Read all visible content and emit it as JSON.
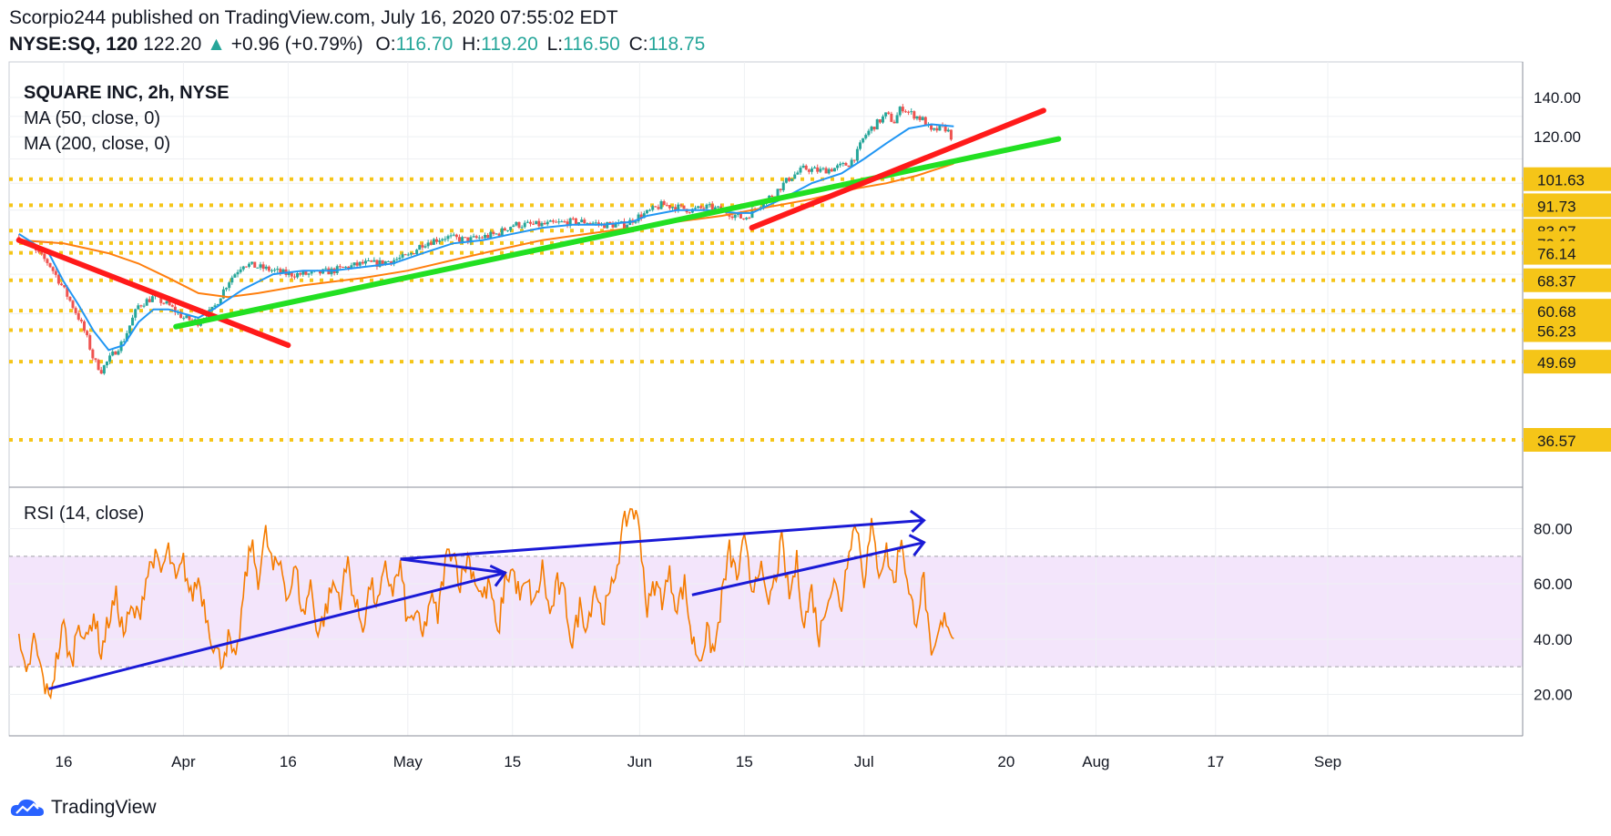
{
  "header": {
    "publisher": "Scorpio244 published on TradingView.com, July 16, 2020 07:55:02 EDT",
    "symbol": "NYSE:SQ, 120",
    "last": "122.20",
    "change": "+0.96 (+0.79%)",
    "o_label": "O:",
    "o": "116.70",
    "h_label": "H:",
    "h": "119.20",
    "l_label": "L:",
    "l": "116.50",
    "c_label": "C:",
    "c": "118.75"
  },
  "legend": {
    "title": "SQUARE INC, 2h, NYSE",
    "ma50": "MA (50, close, 0)",
    "ma200": "MA (200, close, 0)",
    "rsi": "RSI (14, close)"
  },
  "footer": {
    "brand": "TradingView"
  },
  "colors": {
    "up": "#26a69a",
    "down": "#ef5350",
    "ma50": "#2196f3",
    "ma200": "#ff7f0e",
    "rsi": "#f57c00",
    "level": "#f5c518",
    "trend_red": "#ff1a1a",
    "trend_green": "#22e022",
    "trend_blue": "#1a1ad6",
    "rsi_band": "#f3e5fb"
  },
  "chart_data": [
    {
      "type": "candlestick",
      "title": "SQUARE INC, 2h, NYSE",
      "x_ticks": [
        "16",
        "Apr",
        "16",
        "May",
        "15",
        "Jun",
        "15",
        "Jul",
        "20",
        "Aug",
        "17",
        "Sep"
      ],
      "x_tick_days": [
        0,
        16,
        30,
        46,
        60,
        77,
        91,
        107,
        126,
        138,
        154,
        169
      ],
      "y_scale": "log",
      "y_ticks": [
        140,
        120
      ],
      "horizontal_levels": [
        101.63,
        91.73,
        83.07,
        79.12,
        76.14,
        68.37,
        60.68,
        56.23,
        49.69,
        36.57
      ],
      "anchors": [
        [
          -6,
          81
        ],
        [
          -2,
          73
        ],
        [
          0,
          66
        ],
        [
          2,
          59
        ],
        [
          3,
          55
        ],
        [
          4,
          50
        ],
        [
          5,
          48
        ],
        [
          6,
          50
        ],
        [
          7,
          52
        ],
        [
          8,
          54
        ],
        [
          10,
          62
        ],
        [
          12,
          64
        ],
        [
          14,
          62
        ],
        [
          16,
          59
        ],
        [
          18,
          58
        ],
        [
          20,
          61
        ],
        [
          22,
          68
        ],
        [
          24,
          73
        ],
        [
          26,
          72
        ],
        [
          28,
          71
        ],
        [
          30,
          70
        ],
        [
          33,
          70
        ],
        [
          36,
          71
        ],
        [
          38,
          72
        ],
        [
          40,
          73
        ],
        [
          42,
          73
        ],
        [
          44,
          74
        ],
        [
          46,
          75
        ],
        [
          48,
          79
        ],
        [
          51,
          81
        ],
        [
          54,
          80
        ],
        [
          56,
          81
        ],
        [
          58,
          82
        ],
        [
          60,
          85
        ],
        [
          64,
          85
        ],
        [
          68,
          86
        ],
        [
          70,
          86
        ],
        [
          72,
          85
        ],
        [
          75,
          85
        ],
        [
          77,
          88
        ],
        [
          78,
          89
        ],
        [
          80,
          92
        ],
        [
          82,
          91
        ],
        [
          84,
          90
        ],
        [
          86,
          91
        ],
        [
          88,
          90
        ],
        [
          90,
          88
        ],
        [
          91,
          87
        ],
        [
          93,
          92
        ],
        [
          95,
          96
        ],
        [
          97,
          102
        ],
        [
          99,
          106
        ],
        [
          101,
          105
        ],
        [
          103,
          106
        ],
        [
          105,
          108
        ],
        [
          106,
          112
        ],
        [
          107,
          120
        ],
        [
          108,
          124
        ],
        [
          110,
          131
        ],
        [
          111,
          127
        ],
        [
          112,
          135
        ],
        [
          113,
          132
        ],
        [
          114,
          130
        ],
        [
          115,
          128
        ],
        [
          116,
          122
        ],
        [
          117,
          124
        ],
        [
          118,
          124
        ],
        [
          119,
          118
        ]
      ],
      "ma50": [
        [
          -6,
          82
        ],
        [
          -2,
          76
        ],
        [
          0,
          68
        ],
        [
          2,
          62
        ],
        [
          4,
          56
        ],
        [
          6,
          52
        ],
        [
          8,
          53
        ],
        [
          10,
          58
        ],
        [
          12,
          61
        ],
        [
          14,
          61
        ],
        [
          16,
          60
        ],
        [
          18,
          59
        ],
        [
          20,
          61
        ],
        [
          24,
          66
        ],
        [
          28,
          70
        ],
        [
          32,
          71
        ],
        [
          36,
          71
        ],
        [
          40,
          72
        ],
        [
          44,
          73
        ],
        [
          48,
          76
        ],
        [
          52,
          79
        ],
        [
          56,
          80
        ],
        [
          60,
          82
        ],
        [
          64,
          84
        ],
        [
          68,
          85
        ],
        [
          72,
          85
        ],
        [
          76,
          86
        ],
        [
          78,
          88
        ],
        [
          82,
          90
        ],
        [
          86,
          90
        ],
        [
          90,
          89
        ],
        [
          92,
          89
        ],
        [
          96,
          94
        ],
        [
          100,
          100
        ],
        [
          104,
          104
        ],
        [
          107,
          110
        ],
        [
          110,
          117
        ],
        [
          113,
          124
        ],
        [
          116,
          126
        ],
        [
          119,
          125
        ]
      ],
      "ma200": [
        [
          -6,
          80
        ],
        [
          0,
          79
        ],
        [
          6,
          76
        ],
        [
          10,
          73
        ],
        [
          14,
          69
        ],
        [
          18,
          65
        ],
        [
          22,
          64
        ],
        [
          26,
          65
        ],
        [
          32,
          67
        ],
        [
          40,
          69
        ],
        [
          46,
          71
        ],
        [
          52,
          74
        ],
        [
          58,
          77
        ],
        [
          64,
          80
        ],
        [
          70,
          82
        ],
        [
          76,
          84
        ],
        [
          82,
          86
        ],
        [
          88,
          88
        ],
        [
          94,
          91
        ],
        [
          100,
          94
        ],
        [
          106,
          98
        ],
        [
          110,
          100
        ],
        [
          114,
          103
        ],
        [
          119,
          108
        ]
      ],
      "trendlines": [
        {
          "color": "red",
          "from": [
            -6,
            80
          ],
          "to": [
            30,
            53
          ]
        },
        {
          "color": "green",
          "from": [
            15,
            57
          ],
          "to": [
            133,
            119
          ]
        },
        {
          "color": "red",
          "from": [
            92,
            84
          ],
          "to": [
            131,
            133
          ]
        }
      ]
    },
    {
      "type": "line",
      "title": "RSI (14, close)",
      "y_ticks": [
        80,
        60,
        40,
        20
      ],
      "band": [
        30,
        70
      ],
      "anchors": [
        [
          -6,
          38
        ],
        [
          -5,
          25
        ],
        [
          -4,
          40
        ],
        [
          -3,
          28
        ],
        [
          -2,
          18
        ],
        [
          -1,
          32
        ],
        [
          0,
          45
        ],
        [
          1,
          30
        ],
        [
          2,
          48
        ],
        [
          3,
          38
        ],
        [
          4,
          50
        ],
        [
          5,
          35
        ],
        [
          6,
          47
        ],
        [
          7,
          55
        ],
        [
          8,
          42
        ],
        [
          9,
          50
        ],
        [
          10,
          48
        ],
        [
          11,
          62
        ],
        [
          12,
          70
        ],
        [
          13,
          64
        ],
        [
          14,
          72
        ],
        [
          15,
          60
        ],
        [
          16,
          68
        ],
        [
          17,
          55
        ],
        [
          18,
          62
        ],
        [
          19,
          50
        ],
        [
          20,
          38
        ],
        [
          21,
          32
        ],
        [
          22,
          40
        ],
        [
          23,
          30
        ],
        [
          24,
          55
        ],
        [
          25,
          75
        ],
        [
          26,
          62
        ],
        [
          27,
          78
        ],
        [
          28,
          65
        ],
        [
          29,
          68
        ],
        [
          30,
          55
        ],
        [
          31,
          66
        ],
        [
          32,
          48
        ],
        [
          33,
          60
        ],
        [
          34,
          42
        ],
        [
          35,
          50
        ],
        [
          36,
          60
        ],
        [
          37,
          55
        ],
        [
          38,
          68
        ],
        [
          39,
          52
        ],
        [
          40,
          45
        ],
        [
          41,
          60
        ],
        [
          42,
          52
        ],
        [
          43,
          65
        ],
        [
          44,
          58
        ],
        [
          45,
          66
        ],
        [
          46,
          45
        ],
        [
          47,
          50
        ],
        [
          48,
          40
        ],
        [
          49,
          55
        ],
        [
          50,
          48
        ],
        [
          51,
          68
        ],
        [
          52,
          74
        ],
        [
          53,
          60
        ],
        [
          54,
          70
        ],
        [
          55,
          62
        ],
        [
          56,
          55
        ],
        [
          57,
          60
        ],
        [
          58,
          40
        ],
        [
          59,
          62
        ],
        [
          60,
          65
        ],
        [
          61,
          55
        ],
        [
          62,
          60
        ],
        [
          63,
          52
        ],
        [
          64,
          66
        ],
        [
          65,
          48
        ],
        [
          66,
          60
        ],
        [
          67,
          55
        ],
        [
          68,
          38
        ],
        [
          69,
          52
        ],
        [
          70,
          45
        ],
        [
          71,
          60
        ],
        [
          72,
          48
        ],
        [
          73,
          55
        ],
        [
          74,
          68
        ],
        [
          75,
          82
        ],
        [
          76,
          88
        ],
        [
          77,
          80
        ],
        [
          78,
          50
        ],
        [
          79,
          60
        ],
        [
          80,
          55
        ],
        [
          81,
          63
        ],
        [
          82,
          52
        ],
        [
          83,
          60
        ],
        [
          84,
          40
        ],
        [
          85,
          33
        ],
        [
          86,
          42
        ],
        [
          87,
          35
        ],
        [
          88,
          55
        ],
        [
          89,
          72
        ],
        [
          90,
          62
        ],
        [
          91,
          75
        ],
        [
          92,
          58
        ],
        [
          93,
          68
        ],
        [
          94,
          52
        ],
        [
          95,
          60
        ],
        [
          96,
          75
        ],
        [
          97,
          55
        ],
        [
          98,
          68
        ],
        [
          99,
          45
        ],
        [
          100,
          58
        ],
        [
          101,
          40
        ],
        [
          102,
          55
        ],
        [
          103,
          60
        ],
        [
          104,
          52
        ],
        [
          105,
          75
        ],
        [
          106,
          82
        ],
        [
          107,
          62
        ],
        [
          108,
          80
        ],
        [
          109,
          65
        ],
        [
          110,
          72
        ],
        [
          111,
          60
        ],
        [
          112,
          78
        ],
        [
          113,
          55
        ],
        [
          114,
          48
        ],
        [
          115,
          62
        ],
        [
          116,
          30
        ],
        [
          117,
          42
        ],
        [
          118,
          48
        ],
        [
          119,
          40
        ]
      ],
      "trendlines": [
        {
          "color": "blue",
          "from": [
            -2,
            22
          ],
          "to": [
            59,
            64
          ]
        },
        {
          "color": "blue",
          "from": [
            45,
            69
          ],
          "to": [
            59,
            64
          ]
        },
        {
          "color": "blue",
          "from": [
            45,
            69
          ],
          "to": [
            115,
            83
          ]
        },
        {
          "color": "blue",
          "from": [
            84,
            56
          ],
          "to": [
            115,
            75
          ]
        }
      ]
    }
  ]
}
